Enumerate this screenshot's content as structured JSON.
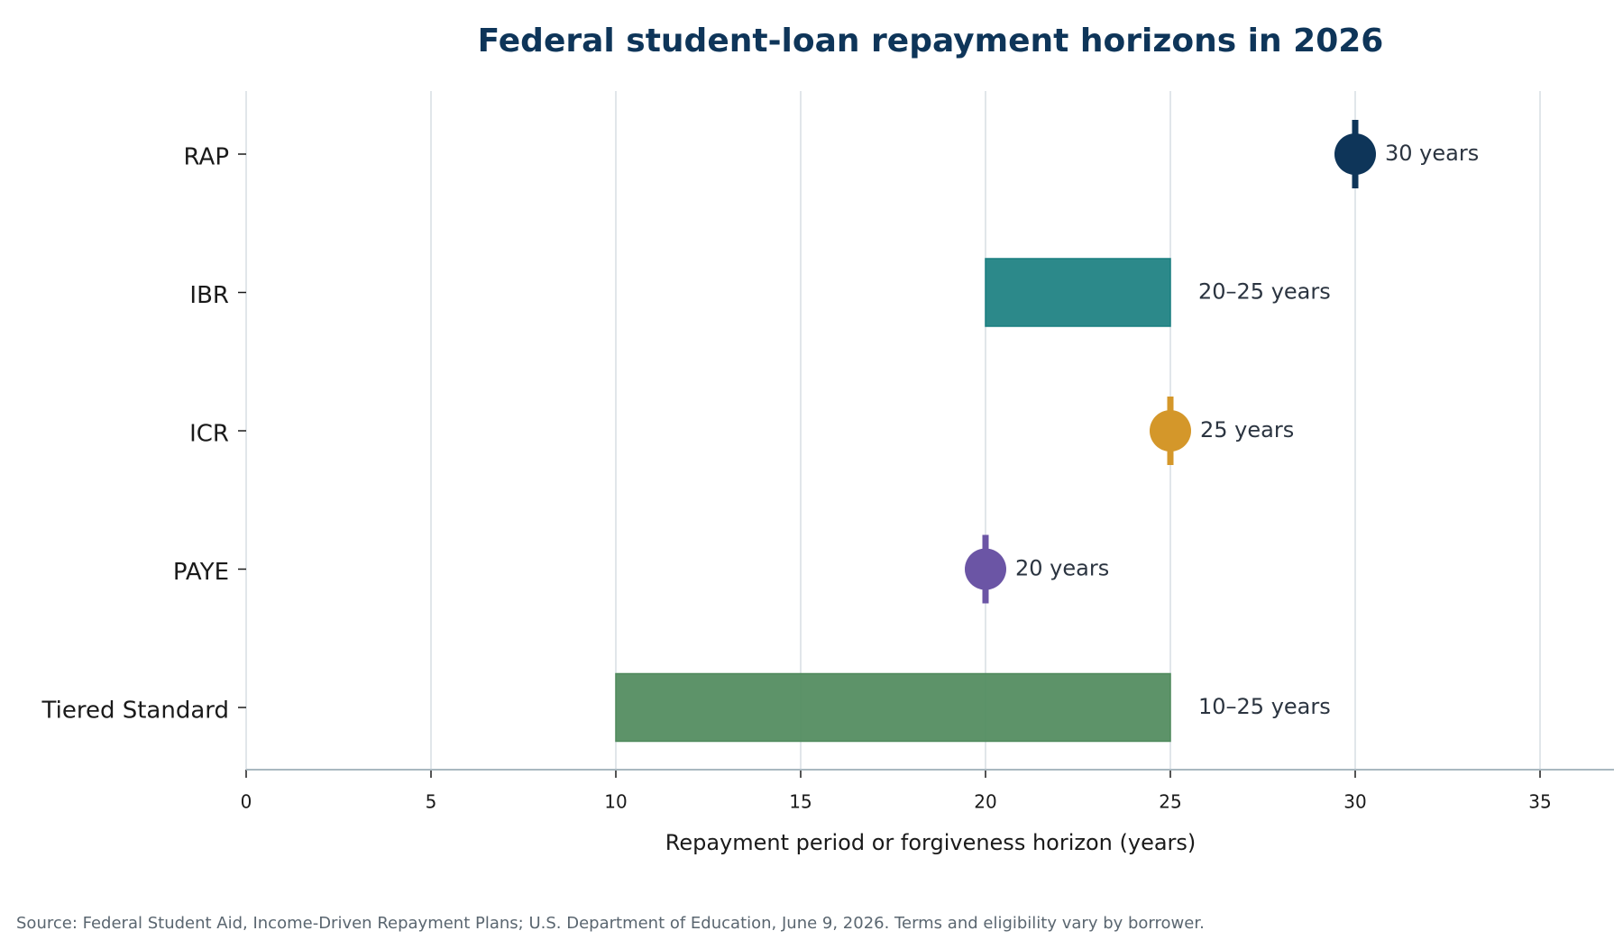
{
  "chart_data": {
    "type": "range",
    "title": "Federal student-loan repayment horizons in 2026",
    "x_label": "Repayment period or forgiveness horizon (years)",
    "source": "Source: Federal Student Aid, Income-Driven Repayment Plans; U.S. Department of Education, June 9, 2026. Terms and eligibility vary by borrower.",
    "categories": [
      "RAP",
      "IBR",
      "ICR",
      "PAYE",
      "Tiered Standard"
    ],
    "starts": [
      30,
      20,
      25,
      20,
      10
    ],
    "ends": [
      30,
      25,
      25,
      20,
      25
    ],
    "value_labels": [
      "30 years",
      "20–25 years",
      "25 years",
      "20 years",
      "10–25 years"
    ],
    "colors": [
      "#0e3559",
      "#1a7f80",
      "#d4972a",
      "#6b55a5",
      "#4f8a5c"
    ],
    "xlim": [
      0,
      37
    ],
    "xticks": [
      0,
      5,
      10,
      15,
      20,
      25,
      30,
      35
    ],
    "grid": true
  }
}
